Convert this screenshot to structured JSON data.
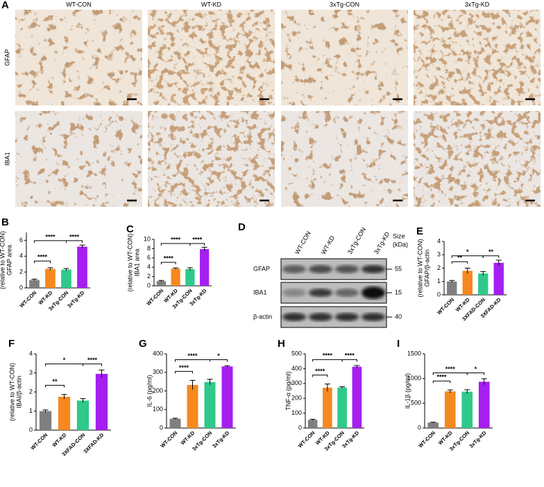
{
  "figure": {
    "micrographs": {
      "panel": "A",
      "columns": [
        "WT-CON",
        "WT-KD",
        "3xTg-CON",
        "3xTg-KD"
      ],
      "rows": [
        "GFAP",
        "IBA1"
      ]
    },
    "blot": {
      "panel": "D",
      "lanes": [
        "WT-CON",
        "WT-KD",
        "3xTg-CON",
        "3xTg-KD"
      ],
      "proteins": [
        "GFAP",
        "IBA1",
        "β-actin"
      ],
      "size_label": [
        "Size",
        "(kDa)"
      ],
      "sizes": [
        55,
        15,
        40
      ]
    }
  },
  "chart_data": [
    {
      "type": "bar",
      "panel": "B",
      "ylabel": [
        "GFAP area",
        "(relative to WT-CON)"
      ],
      "categories": [
        "WT-CON",
        "WT-KD",
        "3xTg-CON",
        "3xTg-KD"
      ],
      "values": [
        1.0,
        2.4,
        2.3,
        5.2
      ],
      "errors": [
        0.1,
        0.15,
        0.15,
        0.2
      ],
      "colors": [
        "#7f7f7f",
        "#f5891f",
        "#2fc98a",
        "#a51ff0"
      ],
      "ylim": [
        0,
        7
      ],
      "yticks": [
        0,
        2,
        4,
        6
      ],
      "significance": [
        "****",
        "****",
        "****"
      ]
    },
    {
      "type": "bar",
      "panel": "C",
      "ylabel": [
        "IBA1 area",
        "(relative to WT-CON)"
      ],
      "categories": [
        "WT-CON",
        "WT-KD",
        "3xTg-CON",
        "3xTg-KD"
      ],
      "values": [
        1.0,
        3.7,
        3.6,
        7.9
      ],
      "errors": [
        0.15,
        0.15,
        0.3,
        0.4
      ],
      "colors": [
        "#7f7f7f",
        "#f5891f",
        "#2fc98a",
        "#a51ff0"
      ],
      "ylim": [
        0,
        10
      ],
      "yticks": [
        0,
        2,
        4,
        6,
        8,
        10
      ],
      "significance": [
        "****",
        "****",
        "****"
      ]
    },
    {
      "type": "bar",
      "panel": "E",
      "ylabel": [
        "GFAP/β-actin",
        "(relative to WT-CON)"
      ],
      "categories": [
        "WT-CON",
        "WT-KD",
        "3XFAD-CON",
        "3XFAD-KD"
      ],
      "values": [
        1.0,
        1.8,
        1.6,
        2.4
      ],
      "errors": [
        0.08,
        0.2,
        0.15,
        0.2
      ],
      "colors": [
        "#7f7f7f",
        "#f5891f",
        "#2fc98a",
        "#a51ff0"
      ],
      "ylim": [
        0,
        4
      ],
      "yticks": [
        0,
        1,
        2,
        3,
        4
      ],
      "significance": [
        "**",
        "*",
        "**"
      ]
    },
    {
      "type": "bar",
      "panel": "F",
      "ylabel": [
        "IBAI/β-actin",
        "(relative to WT-CON)"
      ],
      "categories": [
        "WT-CON",
        "WT-KD",
        "3XFAD-CON",
        "3XFAD-KD"
      ],
      "values": [
        1.0,
        1.75,
        1.55,
        2.95
      ],
      "errors": [
        0.06,
        0.12,
        0.1,
        0.2
      ],
      "colors": [
        "#7f7f7f",
        "#f5891f",
        "#2fc98a",
        "#a51ff0"
      ],
      "ylim": [
        0,
        4
      ],
      "yticks": [
        0,
        1,
        2,
        3,
        4
      ],
      "significance": [
        "**",
        "*",
        "****"
      ]
    },
    {
      "type": "bar",
      "panel": "G",
      "ylabel": [
        "IL-6 (pg/ml)"
      ],
      "categories": [
        "WT-CON",
        "WT-KD",
        "3xTg-CON",
        "3xTg-KD"
      ],
      "values": [
        50,
        232,
        248,
        332
      ],
      "errors": [
        3,
        25,
        15,
        4
      ],
      "colors": [
        "#7f7f7f",
        "#f5891f",
        "#2fc98a",
        "#a51ff0"
      ],
      "ylim": [
        0,
        400
      ],
      "yticks": [
        0,
        100,
        200,
        300,
        400
      ],
      "significance": [
        "****",
        "****",
        "*"
      ]
    },
    {
      "type": "bar",
      "panel": "H",
      "ylabel": [
        "TNF-α (pg/ml)"
      ],
      "categories": [
        "WT-CON",
        "WT-KD",
        "3xTg-CON",
        "3xTg-KD"
      ],
      "values": [
        55,
        272,
        272,
        413
      ],
      "errors": [
        4,
        25,
        6,
        8
      ],
      "colors": [
        "#7f7f7f",
        "#f5891f",
        "#2fc98a",
        "#a51ff0"
      ],
      "ylim": [
        0,
        500
      ],
      "yticks": [
        0,
        100,
        200,
        300,
        400,
        500
      ],
      "significance": [
        "****",
        "****",
        "****"
      ]
    },
    {
      "type": "bar",
      "panel": "I",
      "ylabel": [
        "IL-1β (pg/ml)"
      ],
      "categories": [
        "WT-CON",
        "WT-KD",
        "3xTg-CON",
        "3xTg-KD"
      ],
      "values": [
        110,
        740,
        735,
        935
      ],
      "errors": [
        8,
        30,
        40,
        60
      ],
      "colors": [
        "#7f7f7f",
        "#f5891f",
        "#2fc98a",
        "#a51ff0"
      ],
      "ylim": [
        0,
        1500
      ],
      "yticks": [
        0,
        500,
        1000,
        1500
      ],
      "significance": [
        "****",
        "****",
        "*"
      ]
    }
  ]
}
